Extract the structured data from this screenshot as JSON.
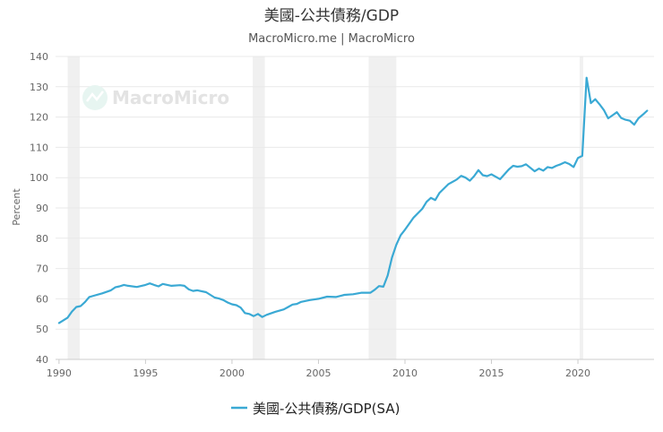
{
  "chart_data": {
    "type": "line",
    "title": "美國-公共債務/GDP",
    "subtitle": "MacroMicro.me | MacroMicro",
    "watermark": "MacroMicro",
    "xlabel": "",
    "ylabel": "Percent",
    "xlim": [
      1989.8,
      2024.4
    ],
    "ylim": [
      40,
      140
    ],
    "yticks": [
      40,
      50,
      60,
      70,
      80,
      90,
      100,
      110,
      120,
      130,
      140
    ],
    "xticks": [
      1990,
      1995,
      2000,
      2005,
      2010,
      2015,
      2020
    ],
    "recessions": [
      [
        1990.5,
        1991.2
      ],
      [
        2001.2,
        2001.9
      ],
      [
        2007.9,
        2009.5
      ],
      [
        2020.1,
        2020.3
      ]
    ],
    "colors": {
      "series": "#3aa9d4",
      "recession": "#f0f0f0"
    },
    "series": [
      {
        "name": "美國-公共債務/GDP(SA)",
        "x": [
          1990.0,
          1990.5,
          1990.75,
          1991.0,
          1991.25,
          1991.5,
          1991.75,
          1992.0,
          1992.5,
          1993.0,
          1993.25,
          1993.5,
          1993.75,
          1994.0,
          1994.5,
          1995.0,
          1995.25,
          1995.5,
          1995.75,
          1996.0,
          1996.5,
          1997.0,
          1997.25,
          1997.5,
          1997.75,
          1998.0,
          1998.5,
          1999.0,
          1999.25,
          1999.5,
          1999.75,
          2000.0,
          2000.25,
          2000.5,
          2000.75,
          2001.0,
          2001.25,
          2001.5,
          2001.75,
          2002.0,
          2002.5,
          2003.0,
          2003.25,
          2003.5,
          2003.75,
          2004.0,
          2004.5,
          2005.0,
          2005.5,
          2006.0,
          2006.5,
          2007.0,
          2007.5,
          2008.0,
          2008.25,
          2008.5,
          2008.75,
          2009.0,
          2009.25,
          2009.5,
          2009.75,
          2010.0,
          2010.5,
          2011.0,
          2011.25,
          2011.5,
          2011.75,
          2012.0,
          2012.5,
          2013.0,
          2013.25,
          2013.5,
          2013.75,
          2014.0,
          2014.25,
          2014.5,
          2014.75,
          2015.0,
          2015.5,
          2016.0,
          2016.25,
          2016.5,
          2016.75,
          2017.0,
          2017.5,
          2017.75,
          2018.0,
          2018.25,
          2018.5,
          2018.75,
          2019.0,
          2019.25,
          2019.5,
          2019.75,
          2020.0,
          2020.25,
          2020.5,
          2020.75,
          2021.0,
          2021.25,
          2021.5,
          2021.75,
          2022.0,
          2022.25,
          2022.5,
          2022.75,
          2023.0,
          2023.25,
          2023.5,
          2023.75,
          2024.0
        ],
        "values": [
          52.0,
          53.8,
          55.8,
          57.3,
          57.6,
          58.9,
          60.6,
          61.0,
          61.8,
          62.8,
          63.8,
          64.1,
          64.6,
          64.3,
          63.9,
          64.6,
          65.1,
          64.6,
          64.1,
          64.9,
          64.3,
          64.5,
          64.3,
          63.1,
          62.6,
          62.8,
          62.2,
          60.4,
          60.1,
          59.6,
          58.8,
          58.2,
          57.9,
          57.1,
          55.3,
          55.0,
          54.3,
          55.0,
          54.0,
          54.7,
          55.7,
          56.5,
          57.3,
          58.1,
          58.3,
          59.0,
          59.6,
          60.0,
          60.7,
          60.6,
          61.3,
          61.5,
          62.0,
          62.0,
          63.0,
          64.2,
          64.0,
          67.7,
          73.6,
          77.8,
          81.0,
          82.8,
          86.8,
          89.7,
          92.0,
          93.3,
          92.6,
          95.0,
          97.8,
          99.4,
          100.6,
          100.0,
          99.0,
          100.5,
          102.5,
          100.8,
          100.5,
          101.1,
          99.5,
          102.7,
          103.9,
          103.6,
          103.8,
          104.4,
          102.1,
          103.0,
          102.3,
          103.5,
          103.2,
          103.9,
          104.4,
          105.1,
          104.5,
          103.5,
          106.5,
          107.2,
          133.0,
          124.6,
          125.9,
          124.2,
          122.3,
          119.6,
          120.6,
          121.6,
          119.7,
          119.1,
          118.8,
          117.5,
          119.6,
          120.8,
          122.1
        ]
      }
    ]
  }
}
